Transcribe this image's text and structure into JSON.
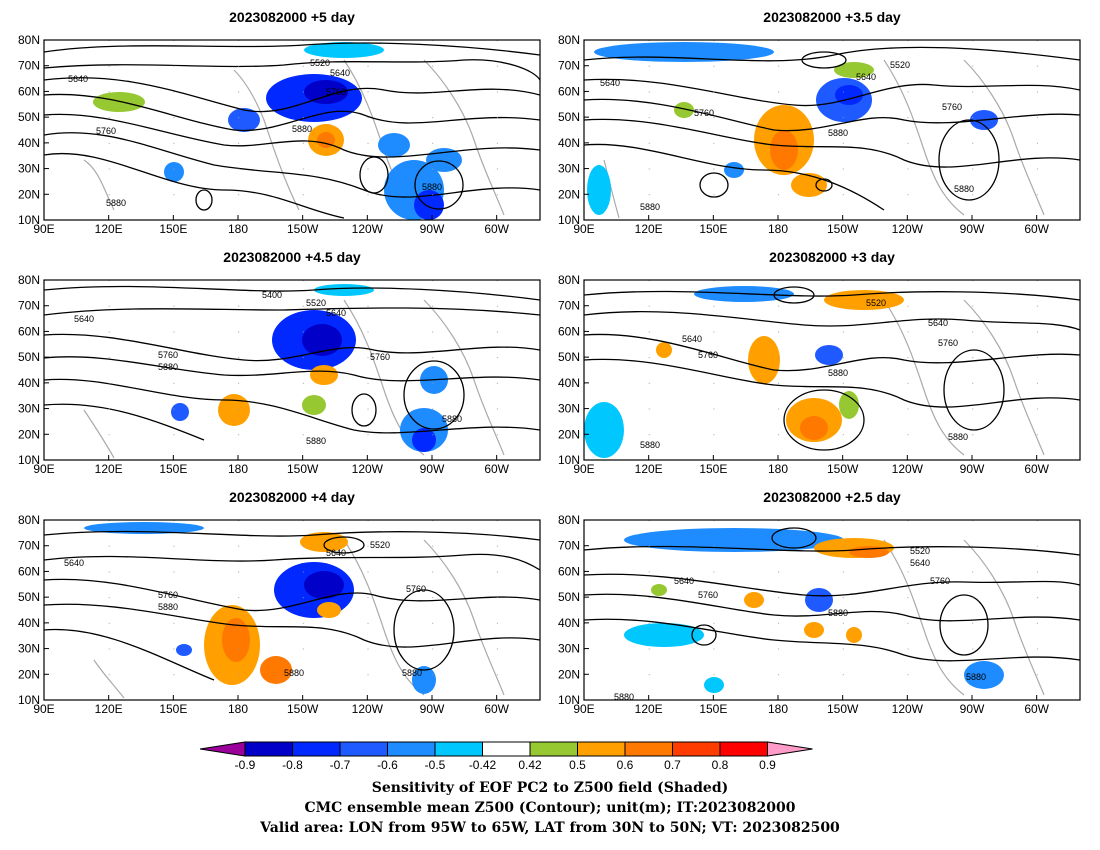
{
  "panels": [
    {
      "title": "2023082000 +5 day",
      "contour_labels": [
        "5520",
        "5640",
        "5640",
        "5760",
        "5760",
        "5880",
        "5880",
        "5880"
      ]
    },
    {
      "title": "2023082000 +3.5 day",
      "contour_labels": [
        "5520",
        "5640",
        "5640",
        "5760",
        "5760",
        "5880",
        "5880",
        "5880"
      ]
    },
    {
      "title": "2023082000 +4.5 day",
      "contour_labels": [
        "5400",
        "5520",
        "5640",
        "5640",
        "5760",
        "5760",
        "5880",
        "5880",
        "5880"
      ]
    },
    {
      "title": "2023082000 +3 day",
      "contour_labels": [
        "5520",
        "5640",
        "5640",
        "5760",
        "5760",
        "5880",
        "5880",
        "5880"
      ]
    },
    {
      "title": "2023082000 +4 day",
      "contour_labels": [
        "5520",
        "5640",
        "5640",
        "5760",
        "5760",
        "5880",
        "5880",
        "5880"
      ]
    },
    {
      "title": "2023082000 +2.5 day",
      "contour_labels": [
        "5520",
        "5640",
        "5640",
        "5760",
        "5760",
        "5880",
        "5880",
        "5880"
      ]
    }
  ],
  "map": {
    "lon_ticks": [
      "90E",
      "120E",
      "150E",
      "180",
      "150W",
      "120W",
      "90W",
      "60W"
    ],
    "lat_ticks": [
      "10N",
      "20N",
      "30N",
      "40N",
      "50N",
      "60N",
      "70N",
      "80N"
    ],
    "lon_range": [
      90,
      320
    ],
    "lat_range": [
      10,
      80
    ]
  },
  "colorbar": {
    "tick_labels": [
      "-0.9",
      "-0.8",
      "-0.7",
      "-0.6",
      "-0.5",
      "-0.42",
      "0.42",
      "0.5",
      "0.6",
      "0.7",
      "0.8",
      "0.9"
    ],
    "colors": [
      "#9b009b",
      "#0000c8",
      "#0028ff",
      "#1e5aff",
      "#1e8cff",
      "#00c8ff",
      "#ffffff",
      "#96c832",
      "#ffa000",
      "#ff7800",
      "#ff3c00",
      "#ff0000",
      "#ff9bc8"
    ]
  },
  "captions": [
    "Sensitivity of EOF PC2 to Z500 field (Shaded)",
    "CMC ensemble mean Z500 (Contour); unit(m); IT:2023082000",
    "Valid area: LON from 95W to 65W, LAT from 30N to 50N; VT: 2023082500"
  ]
}
